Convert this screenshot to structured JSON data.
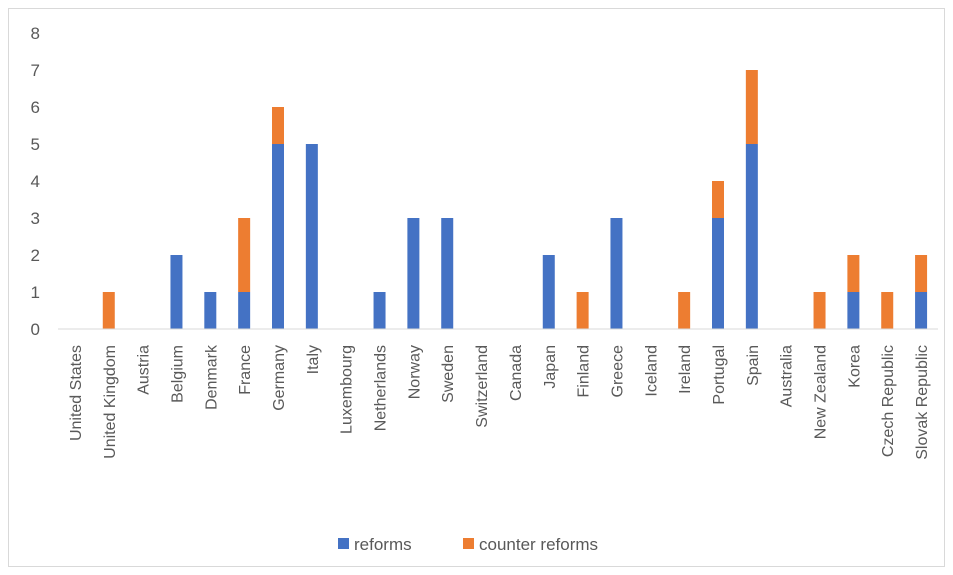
{
  "chart_data": {
    "type": "bar",
    "stacked": true,
    "title": "",
    "xlabel": "",
    "ylabel": "",
    "ylim": [
      0,
      8
    ],
    "yticks": [
      0,
      1,
      2,
      3,
      4,
      5,
      6,
      7,
      8
    ],
    "grid": false,
    "legend_position": "bottom",
    "categories": [
      "United States",
      "United Kingdom",
      "Austria",
      "Belgium",
      "Denmark",
      "France",
      "Germany",
      "Italy",
      "Luxembourg",
      "Netherlands",
      "Norway",
      "Sweden",
      "Switzerland",
      "Canada",
      "Japan",
      "Finland",
      "Greece",
      "Iceland",
      "Ireland",
      "Portugal",
      "Spain",
      "Australia",
      "New Zealand",
      "Korea",
      "Czech Republic",
      "Slovak Republic"
    ],
    "series": [
      {
        "name": "reforms",
        "color": "#4472c4",
        "values": [
          0,
          0,
          0,
          2,
          1,
          1,
          5,
          5,
          0,
          1,
          3,
          3,
          0,
          0,
          2,
          0,
          3,
          0,
          0,
          3,
          5,
          0,
          0,
          1,
          0,
          1
        ]
      },
      {
        "name": "counter reforms",
        "color": "#ed7d31",
        "values": [
          0,
          1,
          0,
          0,
          0,
          2,
          1,
          0,
          0,
          0,
          0,
          0,
          0,
          0,
          0,
          1,
          0,
          0,
          1,
          1,
          2,
          0,
          1,
          1,
          1,
          1
        ]
      }
    ]
  },
  "colors": {
    "axis": "#d9d9d9",
    "text": "#595959"
  }
}
